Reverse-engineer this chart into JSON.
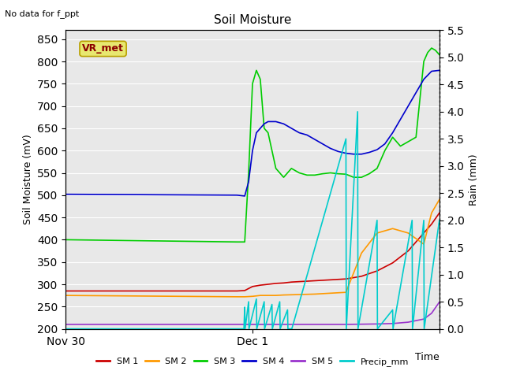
{
  "title": "Soil Moisture",
  "xlabel": "Time",
  "ylabel_left": "Soil Moisture (mV)",
  "ylabel_right": "Rain (mm)",
  "annotation_text": "No data for f_ppt",
  "box_label": "VR_met",
  "ylim_left": [
    200,
    870
  ],
  "ylim_right": [
    0.0,
    5.5
  ],
  "yticks_left": [
    200,
    250,
    300,
    350,
    400,
    450,
    500,
    550,
    600,
    650,
    700,
    750,
    800,
    850
  ],
  "yticks_right": [
    0.0,
    0.5,
    1.0,
    1.5,
    2.0,
    2.5,
    3.0,
    3.5,
    4.0,
    4.5,
    5.0,
    5.5
  ],
  "bg_color": "#e8e8e8",
  "grid_color": "#ffffff",
  "colors": {
    "SM1": "#cc0000",
    "SM2": "#ff9900",
    "SM3": "#00cc00",
    "SM4": "#0000cc",
    "SM5": "#9933cc",
    "Precip": "#00cccc"
  },
  "sm1_t": [
    0,
    22,
    23,
    24,
    25,
    26,
    27,
    28,
    29,
    30,
    32,
    34,
    36,
    38,
    40,
    42,
    44,
    46,
    47,
    48
  ],
  "sm1_v": [
    285,
    285,
    286,
    295,
    298,
    300,
    302,
    303,
    305,
    306,
    308,
    310,
    312,
    318,
    330,
    348,
    375,
    415,
    435,
    460
  ],
  "sm2_t": [
    0,
    22,
    23,
    24,
    25,
    26,
    27,
    28,
    30,
    32,
    34,
    36,
    38,
    40,
    42,
    44,
    46,
    47,
    48
  ],
  "sm2_v": [
    275,
    272,
    272,
    273,
    275,
    275,
    275,
    276,
    277,
    278,
    280,
    282,
    370,
    415,
    425,
    415,
    390,
    460,
    490
  ],
  "sm3_t": [
    0,
    22,
    23,
    23.5,
    24.0,
    24.5,
    25.0,
    25.5,
    26.0,
    27.0,
    28.0,
    29.0,
    30.0,
    31.0,
    32.0,
    33.0,
    34.0,
    35.0,
    36.0,
    37.0,
    38.0,
    39.0,
    40.0,
    41.0,
    42.0,
    43.0,
    44.0,
    45.0,
    46.0,
    46.5,
    47.0,
    47.5,
    48.0
  ],
  "sm3_v": [
    400,
    395,
    395,
    550,
    750,
    780,
    760,
    650,
    640,
    560,
    540,
    560,
    550,
    545,
    545,
    548,
    550,
    548,
    547,
    540,
    540,
    548,
    560,
    600,
    630,
    610,
    620,
    630,
    800,
    820,
    830,
    825,
    815
  ],
  "sm4_t": [
    0,
    22,
    23,
    23.5,
    24.0,
    24.5,
    25.0,
    25.5,
    26.0,
    27.0,
    28.0,
    29.0,
    30.0,
    31.0,
    32.0,
    33.0,
    34.0,
    35.0,
    36.0,
    37.0,
    38.0,
    39.0,
    40.0,
    41.0,
    42.0,
    43.0,
    44.0,
    45.0,
    46.0,
    47.0,
    48.0
  ],
  "sm4_v": [
    502,
    500,
    498,
    530,
    600,
    640,
    650,
    660,
    665,
    665,
    660,
    650,
    640,
    635,
    625,
    615,
    605,
    598,
    594,
    592,
    592,
    596,
    602,
    615,
    640,
    670,
    700,
    730,
    760,
    778,
    780
  ],
  "sm5_t": [
    0,
    22,
    24,
    30,
    36,
    40,
    42,
    44,
    46,
    47,
    48
  ],
  "sm5_v": [
    210,
    210,
    210,
    210,
    210,
    211,
    212,
    215,
    222,
    235,
    260
  ],
  "prec_t": [
    0,
    22.9,
    23.0,
    23.05,
    23.5,
    23.55,
    24.5,
    24.55,
    25.5,
    25.55,
    26.5,
    26.55,
    27.5,
    27.55,
    28.5,
    28.55,
    29.0,
    29.05,
    36.0,
    36.05,
    37.5,
    37.55,
    40.0,
    40.05,
    42.0,
    42.05,
    44.5,
    44.55,
    46.0,
    46.05,
    48.0
  ],
  "prec_v": [
    0,
    0,
    0.4,
    0,
    0.5,
    0,
    0.55,
    0,
    0.5,
    0,
    0.45,
    0,
    0.5,
    0,
    0.35,
    0,
    0,
    0,
    3.5,
    0,
    4.0,
    0,
    2.0,
    0,
    0.35,
    0,
    2.0,
    0,
    2.0,
    0,
    2.0
  ]
}
